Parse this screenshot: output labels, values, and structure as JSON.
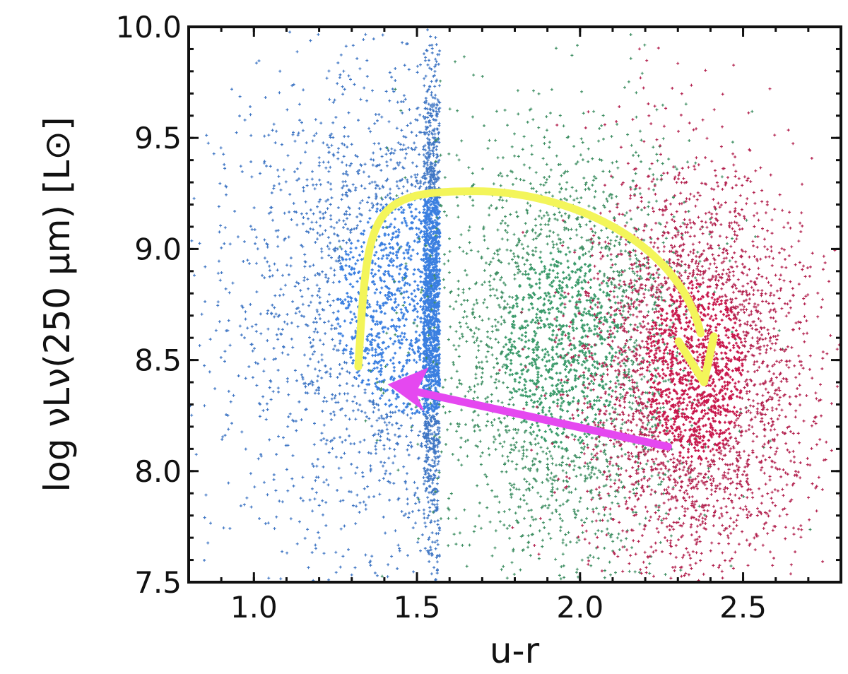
{
  "chart_data": {
    "type": "scatter",
    "title": "",
    "xlabel": "u-r",
    "ylabel": "log νLν(250 μm) [L⊙]",
    "xlim": [
      0.8,
      2.8
    ],
    "ylim": [
      7.5,
      10.0
    ],
    "xticks": [
      1.0,
      1.5,
      2.0,
      2.5
    ],
    "xtick_labels": [
      "1.0",
      "1.5",
      "2.0",
      "2.5"
    ],
    "yticks": [
      7.5,
      8.0,
      8.5,
      9.0,
      9.5,
      10.0
    ],
    "ytick_labels": [
      "7.5",
      "8.0",
      "8.5",
      "9.0",
      "9.5",
      "10.0"
    ],
    "grid": false,
    "legend": "none",
    "series": [
      {
        "color": "#3f76c4",
        "color_dense": "#3a7fe0",
        "description": "blue population, u-r < ~1.57",
        "x_center": 1.5,
        "x_spread": 0.28,
        "y_center": 8.75,
        "y_spread": 0.55,
        "x_max": 1.57
      },
      {
        "color": "#3f8f63",
        "color_dense": "#3a9a6a",
        "description": "green population, ~1.57 < u-r < ~2.3",
        "x_center": 1.95,
        "x_spread": 0.2,
        "y_center": 8.55,
        "y_spread": 0.5
      },
      {
        "color": "#b3224f",
        "color_dense": "#c8184c",
        "description": "red population, u-r > ~1.75",
        "x_center": 2.35,
        "x_spread": 0.17,
        "y_center": 8.45,
        "y_spread": 0.45,
        "x_min": 1.74
      }
    ],
    "annotations": [
      {
        "kind": "curved-arrow",
        "color": "#f3f55a",
        "points": [
          [
            1.32,
            8.47
          ],
          [
            1.35,
            9.18
          ],
          [
            1.68,
            9.26
          ],
          [
            2.3,
            9.05
          ],
          [
            2.38,
            8.4
          ]
        ]
      },
      {
        "kind": "straight-arrow",
        "color": "#e548f0",
        "points": [
          [
            2.27,
            8.11
          ],
          [
            1.41,
            8.39
          ]
        ]
      }
    ]
  }
}
